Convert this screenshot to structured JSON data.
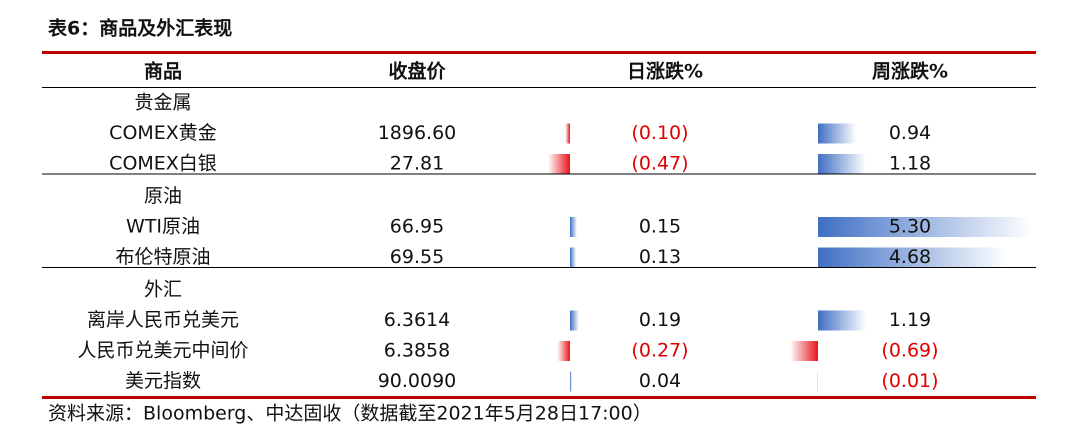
{
  "title": "表6：商品及外汇表现",
  "header": [
    "商品",
    "收盘价",
    "日涨跌%",
    "周涨跌%"
  ],
  "groups": [
    {
      "name": "贵金属",
      "rows": [
        {
          "name": "COMEX黄金",
          "close": "1896.60",
          "daily": {
            "value": -0.1,
            "label": "(0.10)"
          },
          "weekly": 0.94
        },
        {
          "name": "COMEX白银",
          "close": "27.81",
          "daily": {
            "value": -0.47,
            "label": "(0.47)"
          },
          "weekly": 1.18
        }
      ]
    },
    {
      "name": "原油",
      "rows": [
        {
          "name": "WTI原油",
          "close": "66.95",
          "daily": 0.15,
          "weekly": {
            "value": 5.3,
            "label": "5.30"
          }
        },
        {
          "name": "布伦特原油",
          "close": "69.55",
          "daily": 0.13,
          "weekly": 4.68
        }
      ]
    },
    {
      "name": "外汇",
      "rows": [
        {
          "name": "离岸人民币兑美元",
          "close": "6.3614",
          "daily": 0.19,
          "weekly": 1.19
        },
        {
          "name": "人民币兑美元中间价",
          "close": "6.3858",
          "daily": {
            "value": -0.27,
            "label": "(0.27)"
          },
          "weekly": {
            "value": -0.69,
            "label": "(0.69)"
          }
        },
        {
          "name": "美元指数",
          "close": "90.0090",
          "daily": 0.04,
          "weekly": {
            "value": -0.01,
            "label": "(0.01)"
          }
        }
      ]
    }
  ],
  "source": "资料来源：Bloomberg、中达固收（数据截至2021年5月28日17:00）"
}
